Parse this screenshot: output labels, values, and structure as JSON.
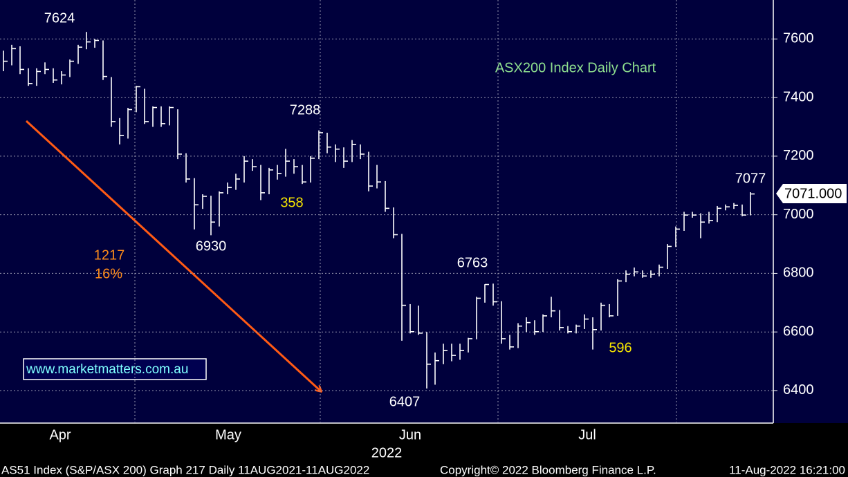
{
  "chart_data": {
    "type": "ohlc",
    "title": "ASX200 Index Daily Chart",
    "watermark": "www.marketmatters.com.au",
    "color": "#ffffff",
    "grid": true,
    "ylim": [
      6289,
      7733
    ],
    "yticks": [
      6400,
      6600,
      6800,
      7000,
      7200,
      7400,
      7600
    ],
    "x_labels": [
      "Apr",
      "May",
      "Jun",
      "Jul"
    ],
    "x_sublabel": "2022",
    "last_price": "7071.000",
    "footer": [
      "AS51 Index (S&P/ASX 200) Graph 217  Daily 11AUG2021-11AUG2022",
      "Copyright© 2022 Bloomberg Finance L.P.",
      "11-Aug-2022 16:21:00"
    ],
    "annotations": [
      {
        "text": "7624",
        "color": "#ffffff"
      },
      {
        "text": "7288",
        "color": "#ffffff"
      },
      {
        "text": "6930",
        "color": "#ffffff"
      },
      {
        "text": "358",
        "color": "#f5e400"
      },
      {
        "text": "1217",
        "color": "#ff8c1a"
      },
      {
        "text": "16%",
        "color": "#ff8c1a"
      },
      {
        "text": "6763",
        "color": "#ffffff"
      },
      {
        "text": "6407",
        "color": "#ffffff"
      },
      {
        "text": "596",
        "color": "#f5e400"
      },
      {
        "text": "7077",
        "color": "#ffffff"
      }
    ],
    "categories": [
      null,
      null,
      null,
      null,
      null,
      null,
      null,
      null,
      null,
      null,
      null,
      null,
      null,
      null,
      null,
      null,
      null,
      null,
      null,
      null,
      null,
      null,
      null,
      null,
      null,
      null,
      null,
      null,
      null,
      null,
      null,
      null,
      null,
      null,
      null,
      null,
      null,
      null,
      null,
      null,
      null,
      null,
      null,
      null,
      null,
      null,
      null,
      null,
      null,
      null,
      null,
      null,
      null,
      null,
      null,
      null,
      null,
      null,
      null,
      null,
      null,
      null,
      null,
      null,
      null,
      null,
      null,
      null,
      null,
      null,
      null,
      null,
      null,
      null,
      null,
      null,
      null,
      null,
      null,
      null,
      null,
      null,
      null,
      null,
      null,
      null,
      null,
      null,
      null,
      null,
      null
    ],
    "high": [
      7560,
      7580,
      7575,
      7500,
      7500,
      7520,
      7500,
      7490,
      7530,
      7580,
      7624,
      7600,
      7595,
      7470,
      7330,
      7365,
      7440,
      7430,
      7370,
      7370,
      7370,
      7360,
      7210,
      7125,
      7070,
      7065,
      7080,
      7110,
      7140,
      7200,
      7190,
      7170,
      7160,
      7170,
      7225,
      7190,
      7170,
      7200,
      7288,
      7280,
      7240,
      7230,
      7255,
      7240,
      7215,
      7170,
      7115,
      7025,
      6935,
      6695,
      6690,
      6600,
      6530,
      6560,
      6560,
      6560,
      6580,
      6720,
      6763,
      6765,
      6705,
      6590,
      6630,
      6650,
      6640,
      6660,
      6720,
      6675,
      6620,
      6625,
      6660,
      6650,
      6700,
      6695,
      6780,
      6810,
      6820,
      6810,
      6810,
      6830,
      6900,
      6960,
      7010,
      7010,
      7005,
      7010,
      7030,
      7035,
      7040,
      7035,
      7077
    ],
    "low": [
      7490,
      7510,
      7480,
      7440,
      7440,
      7480,
      7450,
      7445,
      7470,
      7515,
      7565,
      7570,
      7460,
      7300,
      7240,
      7260,
      7350,
      7310,
      7300,
      7300,
      7305,
      7190,
      7110,
      6950,
      7020,
      6930,
      6960,
      7070,
      7085,
      7110,
      7150,
      7050,
      7070,
      7120,
      7130,
      7140,
      7105,
      7110,
      7190,
      7210,
      7180,
      7160,
      7180,
      7190,
      7080,
      7090,
      7010,
      6920,
      6570,
      6595,
      6590,
      6407,
      6420,
      6490,
      6500,
      6505,
      6530,
      6575,
      6700,
      6690,
      6560,
      6540,
      6545,
      6600,
      6590,
      6600,
      6650,
      6605,
      6595,
      6595,
      6610,
      6540,
      6605,
      6650,
      6655,
      6770,
      6790,
      6785,
      6785,
      6790,
      6815,
      6890,
      6945,
      6990,
      6920,
      6970,
      6975,
      7015,
      7020,
      6995,
      6998
    ],
    "close": [
      7524,
      7567,
      7496,
      7448,
      7489,
      7496,
      7460,
      7477,
      7524,
      7572,
      7590,
      7595,
      7472,
      7318,
      7271,
      7359,
      7437,
      7318,
      7366,
      7311,
      7366,
      7207,
      7122,
      7034,
      7063,
      6975,
      7075,
      7093,
      7122,
      7183,
      7164,
      7075,
      7153,
      7141,
      7183,
      7164,
      7112,
      7193,
      7280,
      7231,
      7224,
      7183,
      7240,
      7207,
      7098,
      7112,
      7022,
      6932,
      6691,
      6601,
      6596,
      6490,
      6502,
      6537,
      6520,
      6537,
      6577,
      6715,
      6762,
      6703,
      6577,
      6549,
      6620,
      6632,
      6601,
      6655,
      6672,
      6615,
      6601,
      6620,
      6644,
      6608,
      6691,
      6655,
      6774,
      6797,
      6805,
      6791,
      6797,
      6821,
      6892,
      6951,
      6999,
      6999,
      6975,
      6980,
      7022,
      7027,
      7032,
      6999,
      7071
    ]
  }
}
